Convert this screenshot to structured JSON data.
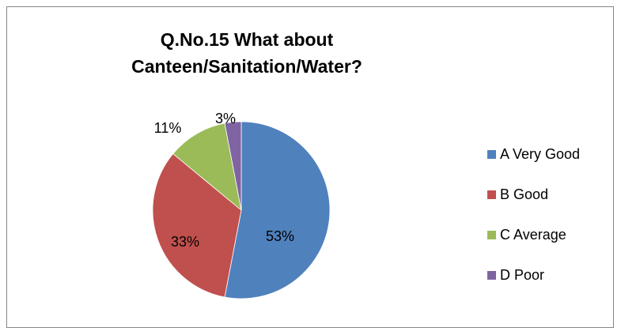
{
  "chart_data": {
    "type": "pie",
    "title_lines": [
      "Q.No.15 What about",
      "Canteen/Sanitation/Water?"
    ],
    "categories": [
      "A Very Good",
      "B Good",
      "C Average",
      "D Poor"
    ],
    "values": [
      53,
      33,
      11,
      3
    ],
    "data_labels": [
      "53%",
      "33%",
      "11%",
      "3%"
    ],
    "colors": [
      "#4F81BD",
      "#C0504D",
      "#9BBB59",
      "#8064A2"
    ],
    "legend": "right"
  }
}
